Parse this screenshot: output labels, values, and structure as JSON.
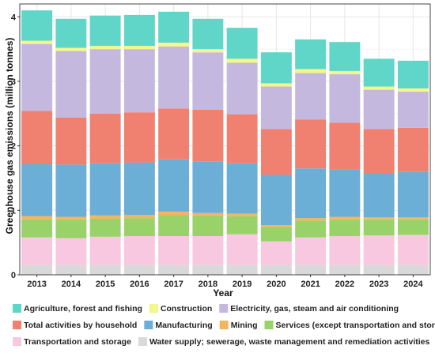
{
  "chart_data": {
    "type": "bar",
    "stacked": true,
    "xlabel": "Year",
    "ylabel": "Greenhouse gas emissions (million tonnes)",
    "ylim": [
      0,
      4.2
    ],
    "yticks": [
      0,
      1,
      2,
      3,
      4
    ],
    "grid": true,
    "legend_position": "bottom",
    "categories": [
      "2013",
      "2014",
      "2015",
      "2016",
      "2017",
      "2018",
      "2019",
      "2020",
      "2021",
      "2022",
      "2023",
      "2024"
    ],
    "series": [
      {
        "name": "Water supply; sewerage, waste management and remediation activities",
        "color": "#d9d9d9",
        "values": [
          0.15,
          0.15,
          0.15,
          0.15,
          0.15,
          0.15,
          0.15,
          0.15,
          0.15,
          0.15,
          0.15,
          0.15
        ]
      },
      {
        "name": "Transportation and storage",
        "color": "#f7c8df",
        "values": [
          0.43,
          0.42,
          0.44,
          0.45,
          0.45,
          0.45,
          0.48,
          0.37,
          0.43,
          0.45,
          0.46,
          0.47
        ]
      },
      {
        "name": "Services (except transportation and storage)",
        "color": "#9ad26a",
        "values": [
          0.28,
          0.29,
          0.28,
          0.28,
          0.33,
          0.32,
          0.28,
          0.22,
          0.26,
          0.26,
          0.25,
          0.24
        ]
      },
      {
        "name": "Mining",
        "color": "#f3b55e",
        "values": [
          0.05,
          0.04,
          0.05,
          0.05,
          0.05,
          0.04,
          0.04,
          0.03,
          0.04,
          0.04,
          0.03,
          0.03
        ]
      },
      {
        "name": "Manufacturing",
        "color": "#6baed6",
        "values": [
          0.81,
          0.81,
          0.81,
          0.81,
          0.81,
          0.8,
          0.78,
          0.78,
          0.77,
          0.73,
          0.69,
          0.71
        ]
      },
      {
        "name": "Total activities by household",
        "color": "#f08070",
        "values": [
          0.82,
          0.73,
          0.77,
          0.78,
          0.79,
          0.8,
          0.76,
          0.71,
          0.76,
          0.73,
          0.68,
          0.68
        ]
      },
      {
        "name": "Electricity, gas, steam and air conditioning",
        "color": "#c5b8df",
        "values": [
          1.04,
          1.03,
          1.0,
          0.98,
          0.96,
          0.89,
          0.8,
          0.66,
          0.72,
          0.75,
          0.61,
          0.56
        ]
      },
      {
        "name": "Construction",
        "color": "#f4f78a",
        "values": [
          0.05,
          0.05,
          0.05,
          0.05,
          0.06,
          0.05,
          0.06,
          0.05,
          0.06,
          0.05,
          0.05,
          0.05
        ]
      },
      {
        "name": "Agriculture, forest and fishing",
        "color": "#5fd6c8",
        "values": [
          0.47,
          0.45,
          0.47,
          0.48,
          0.48,
          0.47,
          0.48,
          0.48,
          0.46,
          0.45,
          0.43,
          0.43
        ]
      }
    ],
    "legend_order": [
      "Agriculture, forest and fishing",
      "Construction",
      "Electricity, gas, steam and air conditioning",
      "Total activities by household",
      "Manufacturing",
      "Mining",
      "Services (except transportation and storage)",
      "Transportation and storage",
      "Water supply; sewerage, waste management and remediation activities"
    ],
    "legend_rows": [
      [
        {
          "label": "Agriculture, forest and fishing"
        },
        {
          "label": "Construction"
        },
        {
          "label": "Electricity, gas, steam and air conditioning"
        }
      ],
      [
        {
          "label": "Total activities by household"
        },
        {
          "label": "Manufacturing"
        },
        {
          "label": "Mining"
        },
        {
          "label": "Services (except transportation and storage)"
        }
      ],
      [
        {
          "label": "Transportation and storage"
        },
        {
          "label": "Water supply; sewerage, waste management and remediation activities"
        }
      ]
    ]
  },
  "colors": {
    "panel_background": "#ffffff",
    "grid": "#e6e6e6",
    "border": "#444444"
  }
}
